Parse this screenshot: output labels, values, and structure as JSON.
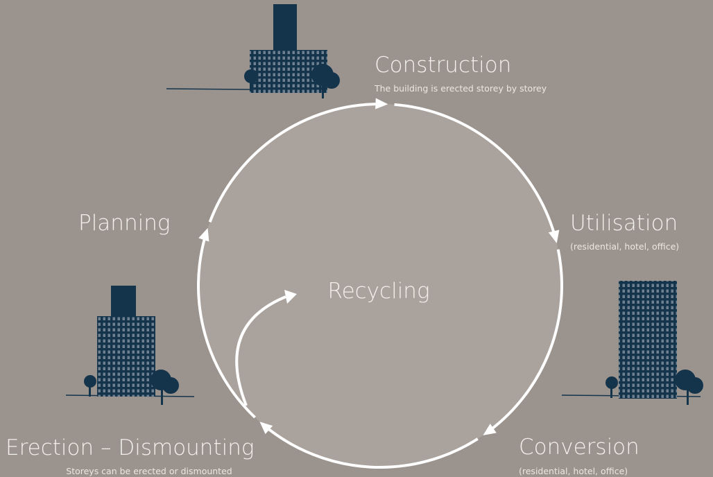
{
  "stages": [
    {
      "title": "Construction",
      "subtitle": "The building is erected storey by storey"
    },
    {
      "title": "Utilisation",
      "subtitle": "(residential, hotel, office)"
    },
    {
      "title": "Conversion",
      "subtitle": "(residential, hotel, office)"
    },
    {
      "title": "Erection – Dismounting",
      "subtitle": "Storeys can be erected or dismounted"
    },
    {
      "title": "Planning"
    }
  ],
  "center": {
    "title": "Recycling"
  }
}
